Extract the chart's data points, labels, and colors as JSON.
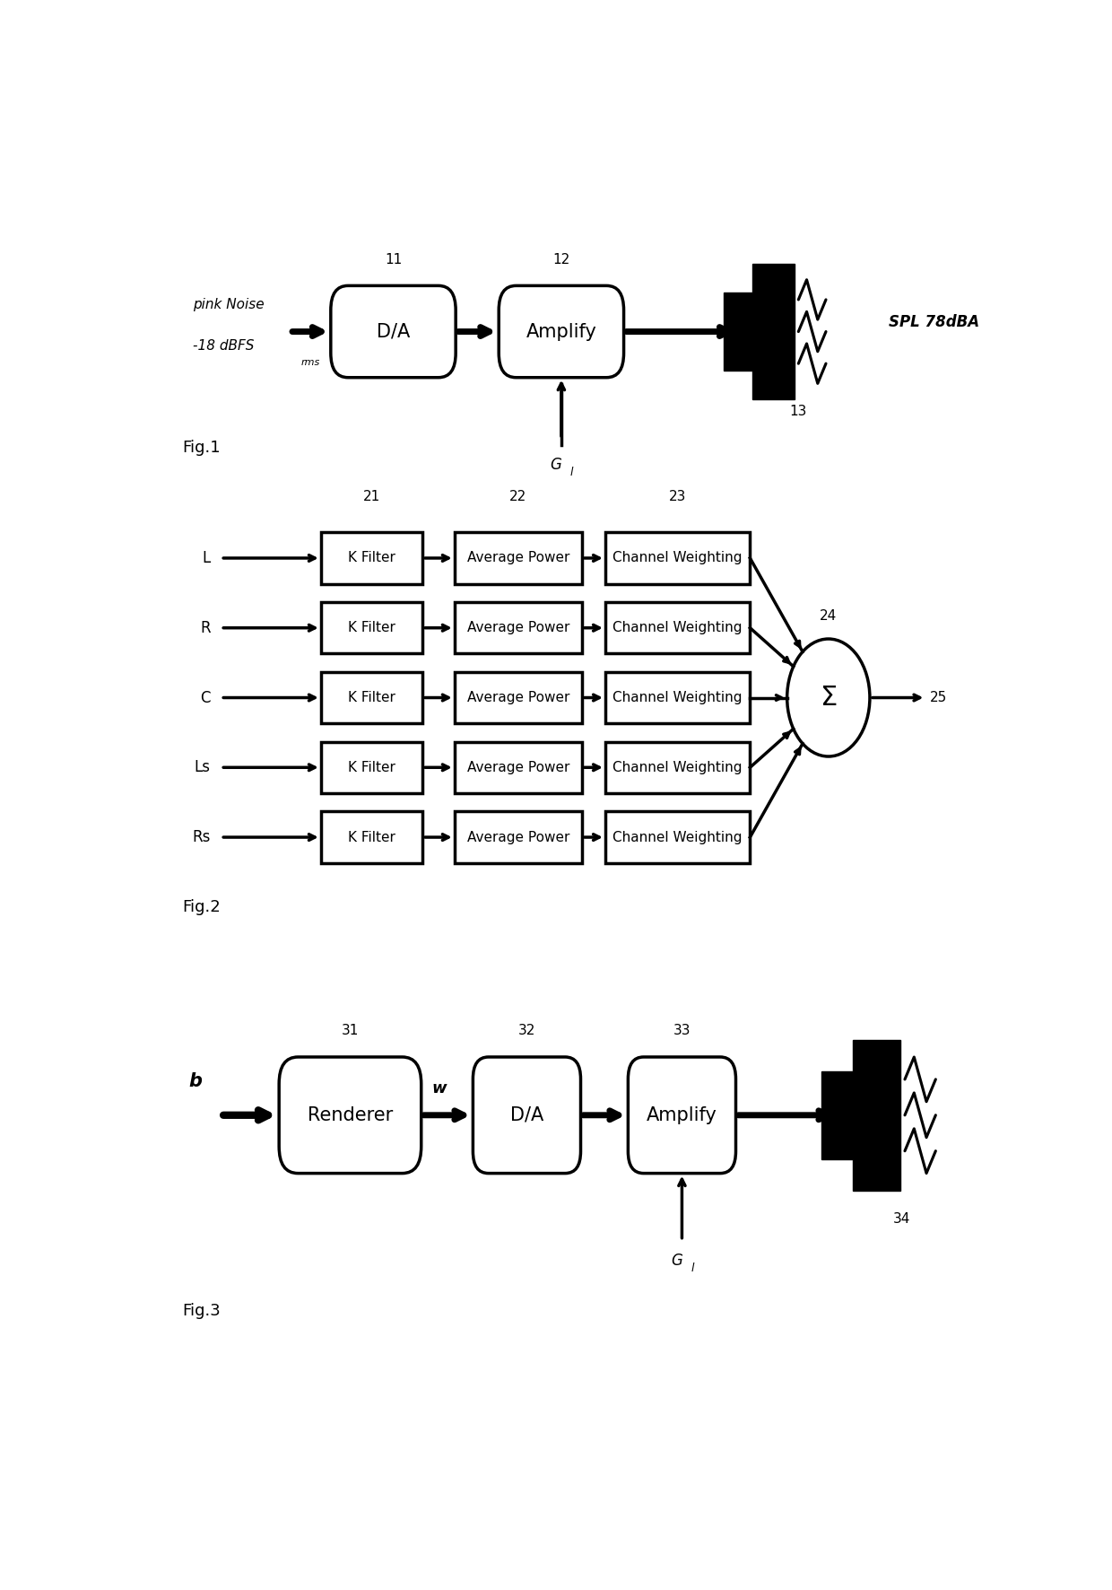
{
  "fig_width": 12.4,
  "fig_height": 17.72,
  "bg_color": "#ffffff",
  "line_color": "#000000",
  "lw": 2.5,
  "fig1": {
    "label": "Fig.1",
    "input_text_line1": "pink Noise",
    "input_text_line2": "-18 dBFS",
    "input_text_sub": "rms",
    "box1_label": "D/A",
    "box1_num": "11",
    "box2_label": "Amplify",
    "box2_num": "12",
    "speaker_num": "13",
    "output_label": "SPL 78dBA",
    "gain_label": "G",
    "gain_sub": "l"
  },
  "fig2": {
    "label": "Fig.2",
    "channels": [
      "L",
      "R",
      "C",
      "Ls",
      "Rs"
    ],
    "col1_label": "K Filter",
    "col2_label": "Average Power",
    "col3_label": "Channel Weighting",
    "col1_num": "21",
    "col2_num": "22",
    "col3_num": "23",
    "sum_num": "24",
    "output_num": "25"
  },
  "fig3": {
    "label": "Fig.3",
    "input_label": "b",
    "box1_label": "Renderer",
    "box1_num": "31",
    "mid_label": "w",
    "box2_label": "D/A",
    "box2_num": "32",
    "box3_label": "Amplify",
    "box3_num": "33",
    "speaker_num": "34",
    "gain_label": "G",
    "gain_sub": "l"
  }
}
